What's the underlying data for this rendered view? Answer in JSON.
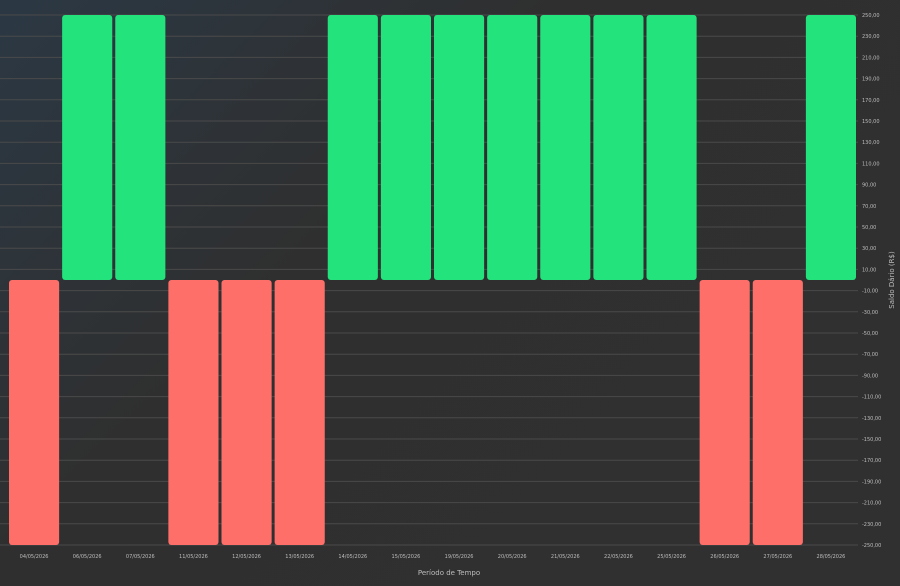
{
  "chart_data": {
    "type": "bar",
    "xlabel": "Período de Tempo",
    "ylabel": "Saldo Dário (R$)",
    "ylim": [
      -250,
      250
    ],
    "y_ticks": [
      250,
      230,
      210,
      190,
      170,
      150,
      130,
      110,
      90,
      70,
      50,
      30,
      10,
      -10,
      -30,
      -50,
      -70,
      -90,
      -110,
      -130,
      -150,
      -170,
      -190,
      -210,
      -230,
      -250
    ],
    "y_tick_labels": [
      "250,00",
      "230,00",
      "210,00",
      "190,00",
      "170,00",
      "150,00",
      "130,00",
      "110,00",
      "90,00",
      "70,00",
      "50,00",
      "30,00",
      "10,00",
      "-10,00",
      "-30,00",
      "-50,00",
      "-70,00",
      "-90,00",
      "-110,00",
      "-130,00",
      "-150,00",
      "-170,00",
      "-190,00",
      "-210,00",
      "-230,00",
      "-250,00"
    ],
    "y_axis_side": "right",
    "grid": true,
    "categories": [
      "04/05/2026",
      "06/05/2026",
      "07/05/2026",
      "11/05/2026",
      "12/05/2026",
      "13/05/2026",
      "14/05/2026",
      "15/05/2026",
      "19/05/2026",
      "20/05/2026",
      "21/05/2026",
      "22/05/2026",
      "25/05/2026",
      "26/05/2026",
      "27/05/2026",
      "28/05/2026"
    ],
    "values": [
      -250,
      250,
      250,
      -250,
      -250,
      -250,
      250,
      250,
      250,
      250,
      250,
      250,
      250,
      -250,
      -250,
      250
    ],
    "colors": {
      "positive": "#22e37c",
      "negative": "#ff6f6a",
      "grid": "#4a4a4a",
      "text": "#bdbdbd"
    }
  }
}
